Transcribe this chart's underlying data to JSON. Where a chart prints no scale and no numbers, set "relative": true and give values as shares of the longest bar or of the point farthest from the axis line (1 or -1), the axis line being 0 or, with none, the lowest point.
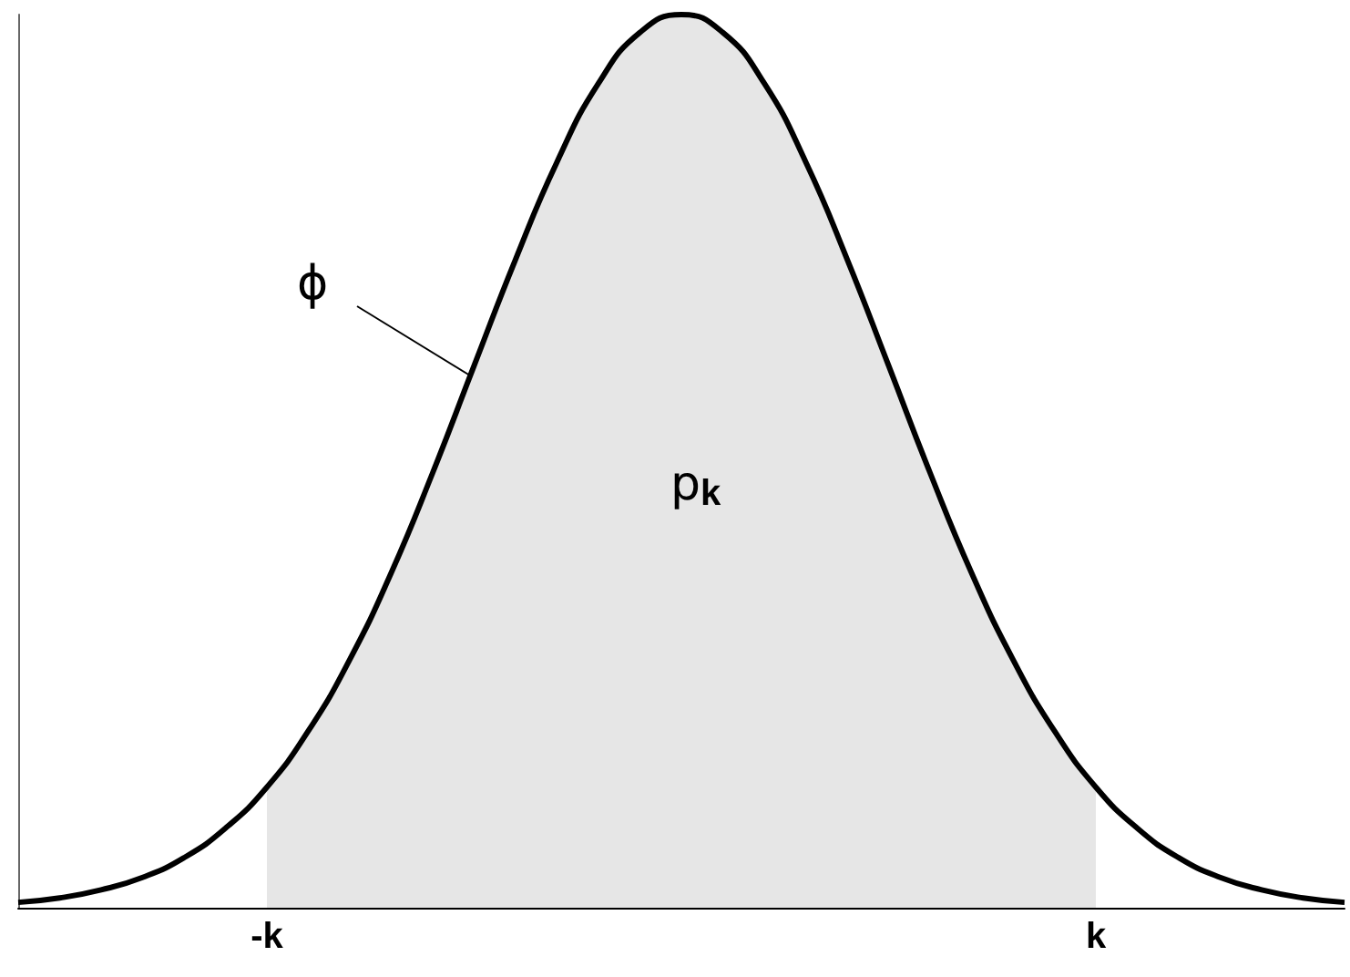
{
  "chart_data": {
    "type": "line",
    "relative": true,
    "grid": false,
    "marker": "none",
    "categories": [
      null,
      null,
      null,
      null,
      null,
      null,
      "-k",
      null,
      null,
      null,
      null,
      null,
      null,
      null,
      null,
      null,
      null,
      null,
      null,
      null,
      null,
      null,
      null,
      null,
      null,
      null,
      "k",
      null,
      null,
      null,
      null,
      null,
      null
    ],
    "series": [
      {
        "type": "area",
        "color": "#e6e6e6",
        "values": [
          null,
          null,
          null,
          null,
          null,
          null,
          0.135,
          0.198,
          0.278,
          0.375,
          0.487,
          0.607,
          0.726,
          0.835,
          0.923,
          0.98,
          1,
          0.98,
          0.923,
          0.835,
          0.726,
          0.607,
          0.487,
          0.375,
          0.278,
          0.198,
          0.135,
          null,
          null,
          null,
          null,
          null,
          null
        ]
      },
      {
        "color": "#000000",
        "values": [
          0.006,
          0.011,
          0.02,
          0.034,
          0.056,
          0.089,
          0.135,
          0.198,
          0.278,
          0.375,
          0.487,
          0.607,
          0.726,
          0.835,
          0.923,
          0.98,
          1,
          0.98,
          0.923,
          0.835,
          0.726,
          0.607,
          0.487,
          0.375,
          0.278,
          0.198,
          0.135,
          0.089,
          0.056,
          0.034,
          0.02,
          0.011,
          0.006
        ]
      }
    ],
    "annotations": [
      "ϕ",
      "p$_{k}$"
    ]
  }
}
